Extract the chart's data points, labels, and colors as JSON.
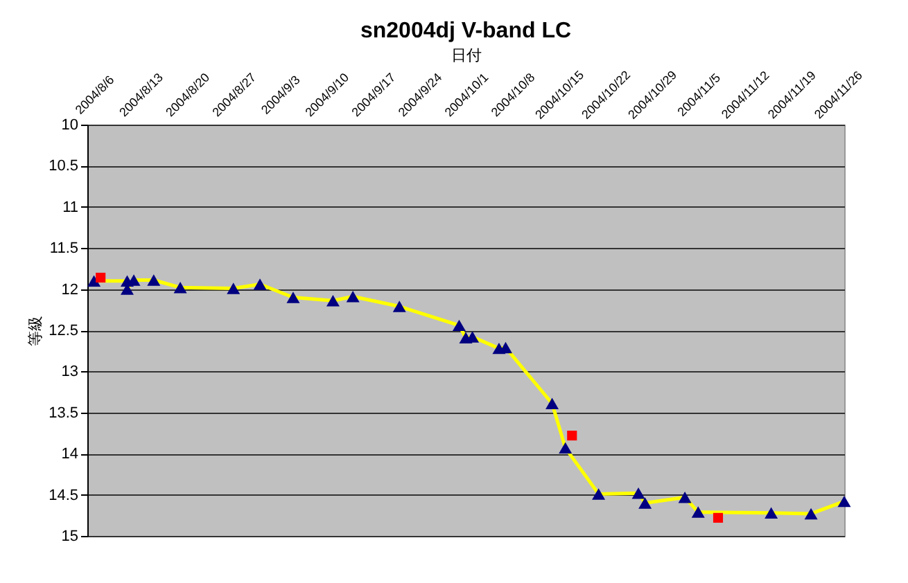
{
  "chart_data": {
    "type": "line",
    "title": "sn2004dj V-band LC",
    "xlabel": "日付",
    "ylabel": "等級",
    "xlim": [
      "2004-08-05",
      "2004-11-27"
    ],
    "xticks": [
      {
        "value": "2004-08-06",
        "label": "2004/8/6"
      },
      {
        "value": "2004-08-13",
        "label": "2004/8/13"
      },
      {
        "value": "2004-08-20",
        "label": "2004/8/20"
      },
      {
        "value": "2004-08-27",
        "label": "2004/8/27"
      },
      {
        "value": "2004-09-03",
        "label": "2004/9/3"
      },
      {
        "value": "2004-09-10",
        "label": "2004/9/10"
      },
      {
        "value": "2004-09-17",
        "label": "2004/9/17"
      },
      {
        "value": "2004-09-24",
        "label": "2004/9/24"
      },
      {
        "value": "2004-10-01",
        "label": "2004/10/1"
      },
      {
        "value": "2004-10-08",
        "label": "2004/10/8"
      },
      {
        "value": "2004-10-15",
        "label": "2004/10/15"
      },
      {
        "value": "2004-10-22",
        "label": "2004/10/22"
      },
      {
        "value": "2004-10-29",
        "label": "2004/10/29"
      },
      {
        "value": "2004-11-05",
        "label": "2004/11/5"
      },
      {
        "value": "2004-11-12",
        "label": "2004/11/12"
      },
      {
        "value": "2004-11-19",
        "label": "2004/11/19"
      },
      {
        "value": "2004-11-26",
        "label": "2004/11/26"
      }
    ],
    "ylim": [
      15,
      10
    ],
    "yticks": [
      10,
      10.5,
      11,
      11.5,
      12,
      12.5,
      13,
      13.5,
      14,
      14.5,
      15
    ],
    "grid": "y",
    "series": [
      {
        "color": "#ffff00",
        "marker": "none",
        "x": [
          "2004-08-06",
          "2004-08-11",
          "2004-08-11",
          "2004-08-12",
          "2004-08-15",
          "2004-08-19",
          "2004-08-27",
          "2004-08-31",
          "2004-09-05",
          "2004-09-11",
          "2004-09-14",
          "2004-09-21",
          "2004-09-30",
          "2004-10-01",
          "2004-10-02",
          "2004-10-06",
          "2004-10-07",
          "2004-10-14",
          "2004-10-16",
          "2004-10-21",
          "2004-10-27",
          "2004-10-28",
          "2004-11-03",
          "2004-11-05",
          "2004-11-16",
          "2004-11-22",
          "2004-11-27"
        ],
        "values": [
          11.9,
          11.9,
          12.0,
          11.89,
          11.89,
          11.98,
          11.99,
          11.94,
          12.1,
          12.14,
          12.09,
          12.21,
          12.44,
          12.59,
          12.58,
          12.72,
          12.71,
          13.39,
          13.93,
          14.49,
          14.48,
          14.6,
          14.53,
          14.71,
          14.72,
          14.73,
          14.58
        ]
      },
      {
        "type": "scatter",
        "color": "#000080",
        "marker": "triangle",
        "x": [
          "2004-08-06",
          "2004-08-11",
          "2004-08-11",
          "2004-08-12",
          "2004-08-15",
          "2004-08-19",
          "2004-08-27",
          "2004-08-31",
          "2004-09-05",
          "2004-09-11",
          "2004-09-14",
          "2004-09-21",
          "2004-09-30",
          "2004-10-01",
          "2004-10-02",
          "2004-10-06",
          "2004-10-07",
          "2004-10-14",
          "2004-10-16",
          "2004-10-21",
          "2004-10-27",
          "2004-10-28",
          "2004-11-03",
          "2004-11-05",
          "2004-11-16",
          "2004-11-22",
          "2004-11-27"
        ],
        "values": [
          11.9,
          11.9,
          12.0,
          11.89,
          11.89,
          11.98,
          11.99,
          11.94,
          12.1,
          12.14,
          12.09,
          12.21,
          12.44,
          12.59,
          12.58,
          12.72,
          12.71,
          13.39,
          13.93,
          14.49,
          14.48,
          14.6,
          14.53,
          14.71,
          14.72,
          14.73,
          14.58
        ]
      },
      {
        "type": "scatter",
        "color": "#ff0000",
        "marker": "square",
        "x": [
          "2004-08-07",
          "2004-10-17",
          "2004-11-08"
        ],
        "values": [
          11.86,
          13.78,
          14.78
        ]
      }
    ]
  }
}
